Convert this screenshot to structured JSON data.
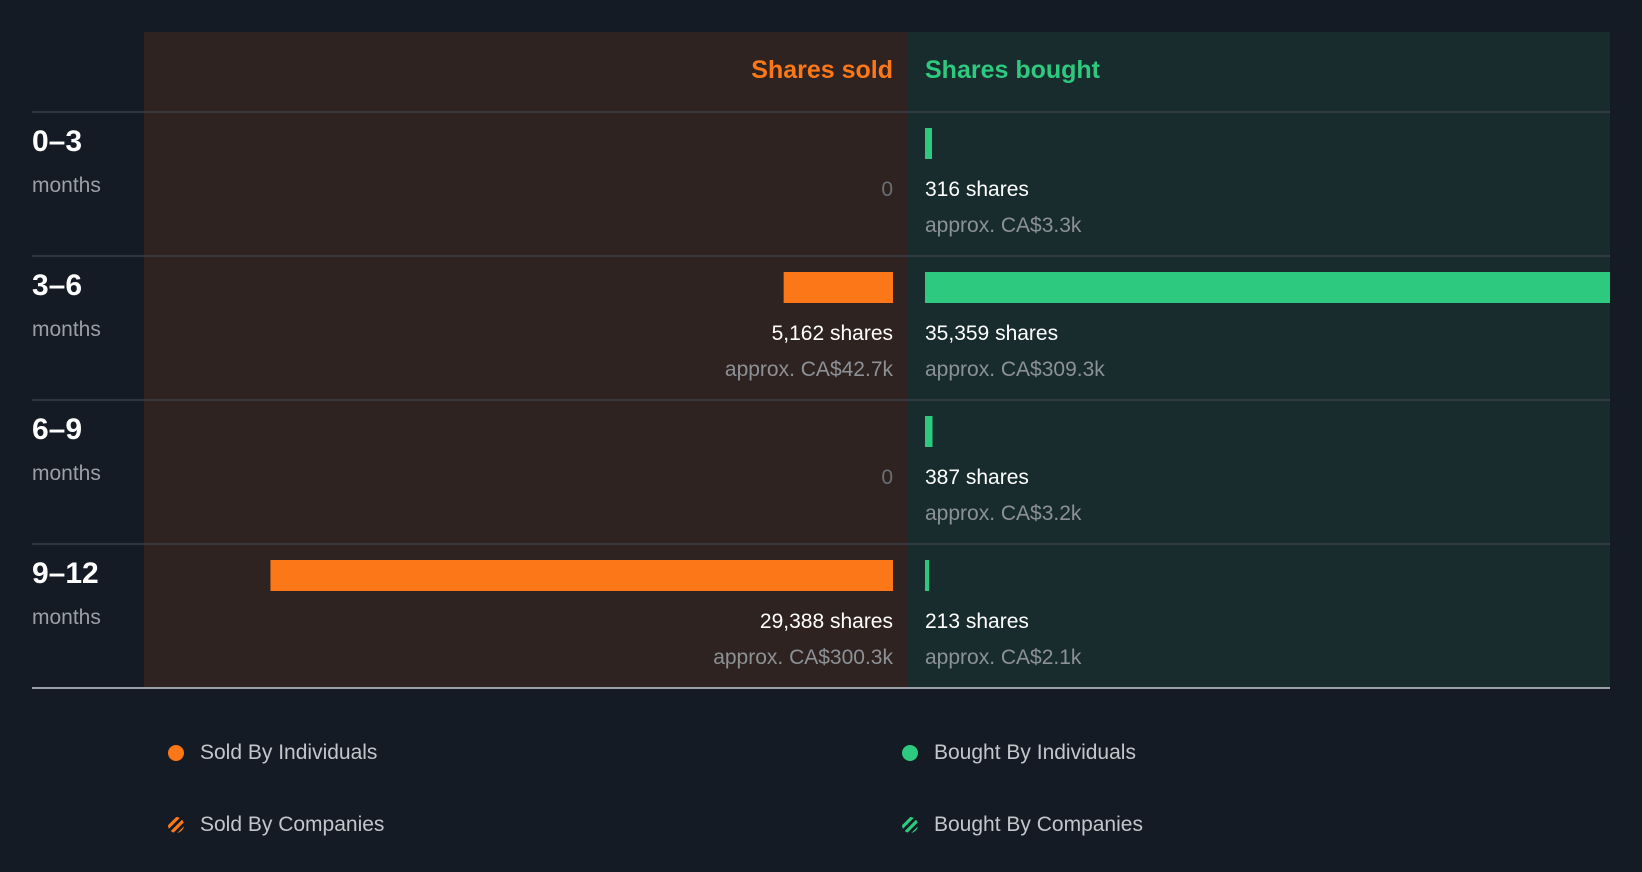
{
  "chart_data": {
    "type": "bar",
    "headers": {
      "sold": "Shares sold",
      "bought": "Shares bought"
    },
    "period_unit": "months",
    "rows": [
      {
        "period": "0–3",
        "sold": {
          "shares": 0,
          "label": "0"
        },
        "bought": {
          "shares": 316,
          "label": "316 shares",
          "approx": "approx. CA$3.3k"
        }
      },
      {
        "period": "3–6",
        "sold": {
          "shares": 5162,
          "label": "5,162 shares",
          "approx": "approx. CA$42.7k"
        },
        "bought": {
          "shares": 35359,
          "label": "35,359 shares",
          "approx": "approx. CA$309.3k"
        }
      },
      {
        "period": "6–9",
        "sold": {
          "shares": 0,
          "label": "0"
        },
        "bought": {
          "shares": 387,
          "label": "387 shares",
          "approx": "approx. CA$3.2k"
        }
      },
      {
        "period": "9–12",
        "sold": {
          "shares": 29388,
          "label": "29,388 shares",
          "approx": "approx. CA$300.3k"
        },
        "bought": {
          "shares": 213,
          "label": "213 shares",
          "approx": "approx. CA$2.1k"
        }
      }
    ],
    "max_sold": 35359,
    "max_bought": 35359
  },
  "legend": {
    "sold_individuals": "Sold By Individuals",
    "sold_companies": "Sold By Companies",
    "bought_individuals": "Bought By Individuals",
    "bought_companies": "Bought By Companies"
  },
  "colors": {
    "sold": "#fc7717",
    "bought": "#2dc97e",
    "sold_bg": "#2f2321",
    "bought_bg": "#182c2d",
    "page_bg": "#141b24"
  }
}
